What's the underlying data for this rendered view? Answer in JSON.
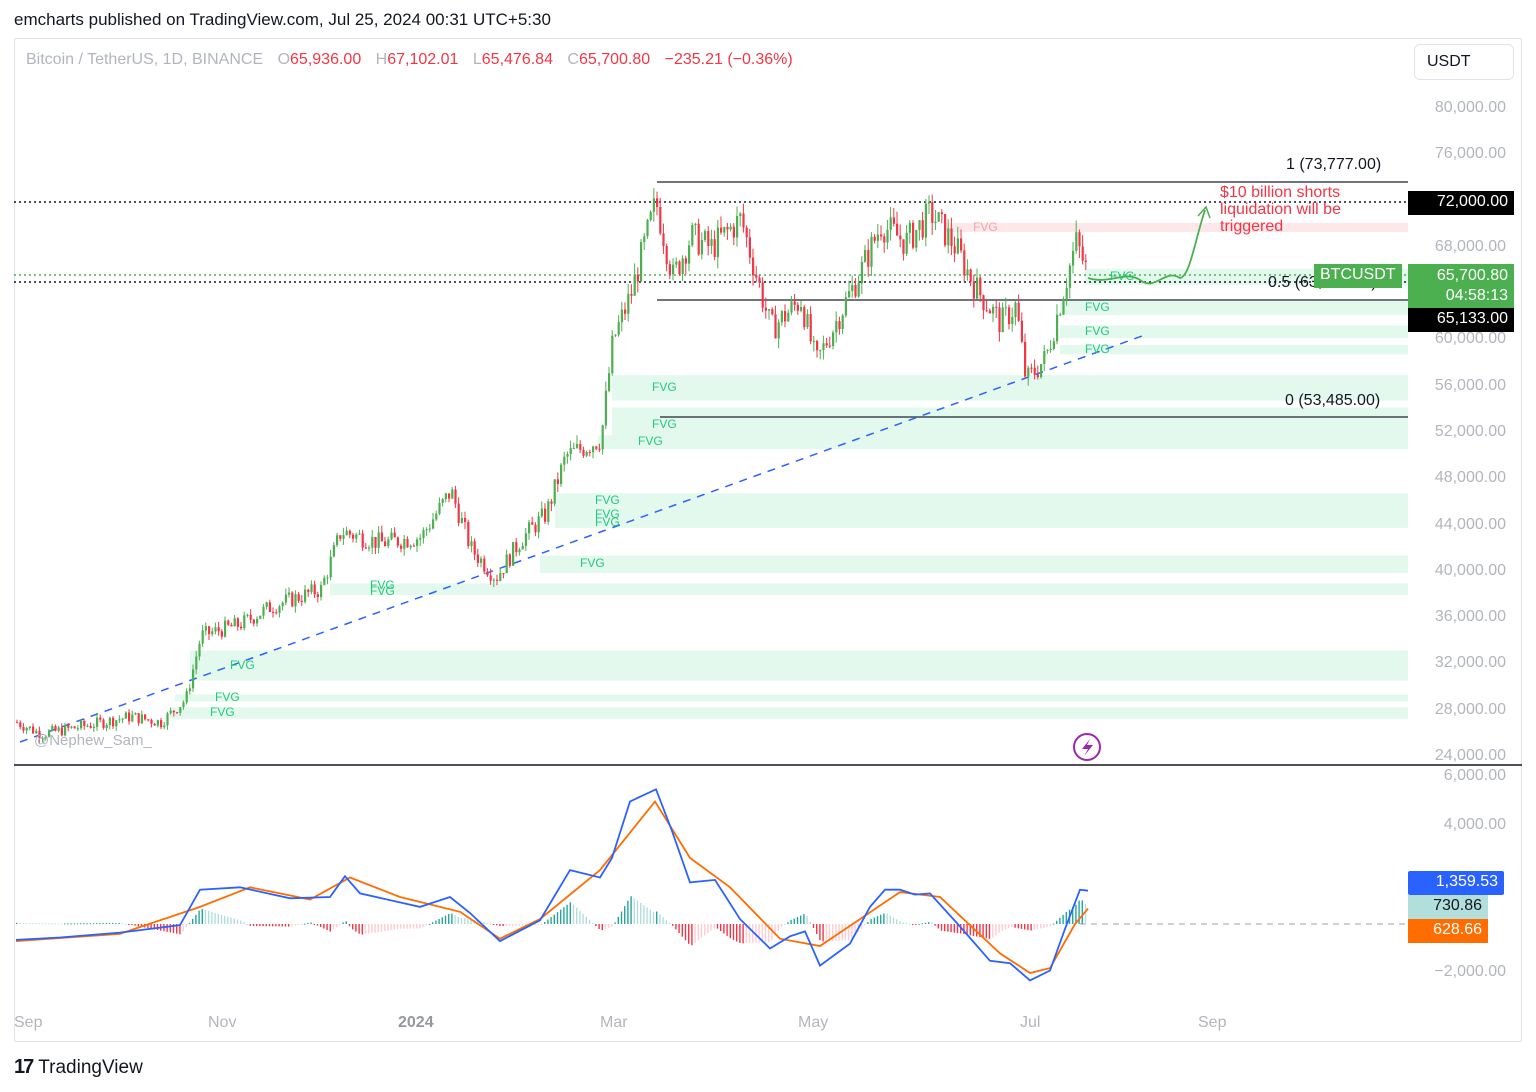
{
  "header": {
    "published": "emcharts published on TradingView.com, Jul 25, 2024 00:31 UTC+5:30"
  },
  "legend": {
    "symbol": "Bitcoin / TetherUS, 1D, BINANCE",
    "open_label": "O",
    "open": "65,936.00",
    "high_label": "H",
    "high": "67,102.01",
    "low_label": "L",
    "low": "65,476.84",
    "close_label": "C",
    "close": "65,700.80",
    "change": "−235.21 (−0.36%)"
  },
  "price_axis": {
    "unit_button": "USDT",
    "ticks": [
      "80,000.00",
      "76,000.00",
      "72,000.00",
      "68,000.00",
      "64,000.00",
      "60,000.00",
      "56,000.00",
      "52,000.00",
      "48,000.00",
      "44,000.00",
      "40,000.00",
      "36,000.00",
      "32,000.00",
      "28,000.00",
      "24,000.00"
    ],
    "level_72000": "72,000.00",
    "symbol_tag": "BTCUSDT",
    "last_price": "65,700.80",
    "countdown": "04:58:13",
    "level_65133": "65,133.00"
  },
  "macd_axis": {
    "ticks": [
      "6,000.00",
      "4,000.00",
      "2,000.00",
      "−2,000.00"
    ],
    "macd_value": "1,359.53",
    "hist_value": "730.86",
    "signal_value": "628.66"
  },
  "time_axis": {
    "labels": [
      "Sep",
      "Nov",
      "2024",
      "Mar",
      "May",
      "Jul",
      "Sep"
    ]
  },
  "annotations": {
    "fib_top": "1 (73,777.00)",
    "fib_mid": "0.5 (63,631.00)",
    "fib_bottom": "0 (53,485.00)",
    "note": "$10 billion shorts liquidation will be triggered",
    "note_lines": [
      "$10 billion shorts",
      "liquidation will be",
      "triggered"
    ],
    "fvg_label": "FVG",
    "watermark": "@Nephew_Sam_"
  },
  "footer": {
    "brand": "TradingView",
    "logo": "17"
  },
  "colors": {
    "up": "#4caf50",
    "down": "#f23645",
    "fvg_bull": "#e3f9ee",
    "fvg_bear": "#fde7e9",
    "fvg_text": "#22c97a",
    "macd": "#2962ff",
    "signal": "#ff6d00",
    "trendline": "#2962ff",
    "hist_up": "#26a69a",
    "hist_up_light": "#b2dfdb",
    "hist_down": "#f23645",
    "hist_down_light": "#ffcdd2"
  },
  "chart_data": {
    "type": "candlestick",
    "title": "Bitcoin / TetherUS, 1D, BINANCE",
    "xlabel": "",
    "ylabel": "USDT",
    "ylim": [
      24000,
      82000
    ],
    "x_ticks": [
      "Sep 2023",
      "Nov 2023",
      "2024",
      "Mar 2024",
      "May 2024",
      "Jul 2024",
      "Sep 2024"
    ],
    "ohlc_last": {
      "open": 65936.0,
      "high": 67102.01,
      "low": 65476.84,
      "close": 65700.8,
      "change": -235.21,
      "change_pct": -0.36
    },
    "approx_closes_monthly": [
      {
        "date": "2023-09",
        "close": 26500
      },
      {
        "date": "2023-10",
        "close": 34500
      },
      {
        "date": "2023-11",
        "close": 37700
      },
      {
        "date": "2023-12",
        "close": 42300
      },
      {
        "date": "2024-01",
        "close": 42600
      },
      {
        "date": "2024-02",
        "close": 61200
      },
      {
        "date": "2024-03",
        "close": 71300
      },
      {
        "date": "2024-04",
        "close": 60600
      },
      {
        "date": "2024-05",
        "close": 67500
      },
      {
        "date": "2024-06",
        "close": 62700
      },
      {
        "date": "2024-07",
        "close": 65700
      }
    ],
    "horizontal_levels": [
      72000,
      65133,
      65700.8
    ],
    "fibonacci": [
      {
        "level": 1,
        "price": 73777.0
      },
      {
        "level": 0.5,
        "price": 63631.0
      },
      {
        "level": 0,
        "price": 53485.0
      }
    ],
    "trendline": {
      "style": "dashed",
      "from": {
        "date": "2023-09-10",
        "price": 26000
      },
      "to": {
        "date": "2024-07-25",
        "price": 61000
      }
    },
    "fvg_zones_bullish": [
      [
        64800,
        66200
      ],
      [
        62200,
        63400
      ],
      [
        60200,
        61300
      ],
      [
        58800,
        59600
      ],
      [
        54800,
        57000
      ],
      [
        51200,
        54200
      ],
      [
        50600,
        51800
      ],
      [
        45400,
        46800
      ],
      [
        44400,
        45400
      ],
      [
        43800,
        44600
      ],
      [
        39900,
        41400
      ],
      [
        38600,
        39000
      ],
      [
        38000,
        38600
      ],
      [
        30600,
        33200
      ],
      [
        28800,
        29400
      ],
      [
        27300,
        28300
      ]
    ],
    "fvg_zones_bearish": [
      [
        69600,
        70400
      ]
    ],
    "projection": "sideways consolidation near 65,700 then rally toward 72,000",
    "annotation": "$10 billion shorts liquidation will be triggered",
    "indicator": {
      "name": "MACD",
      "ylim": [
        -2500,
        6200
      ],
      "macd_last": 1359.53,
      "histogram_last": 730.86,
      "signal_last": 628.66,
      "approx_macd_monthly": [
        -300,
        1400,
        1200,
        1500,
        -250,
        3300,
        5300,
        -900,
        1900,
        -1300,
        1360
      ]
    }
  }
}
